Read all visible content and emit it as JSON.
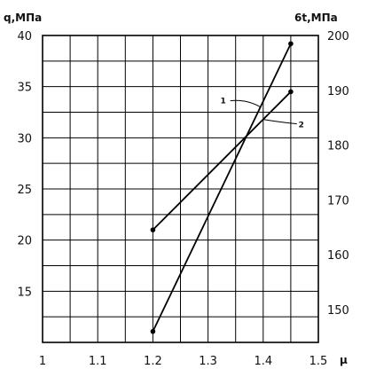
{
  "chart_data": {
    "type": "line",
    "left_axis_title": "q,МПа",
    "right_axis_title": "6t,МПа",
    "x_axis_title": "μ",
    "x_ticks": [
      "1",
      "1.1",
      "1.2",
      "1.3",
      "1.4",
      "1.5"
    ],
    "y_left_ticks": [
      "15",
      "20",
      "25",
      "30",
      "35",
      "40"
    ],
    "y_right_ticks": [
      "150",
      "160",
      "170",
      "180",
      "190",
      "200"
    ],
    "xlim": [
      1.0,
      1.5
    ],
    "ylim_left": [
      10,
      40
    ],
    "ylim_right": [
      144,
      200
    ],
    "grid": true,
    "series": [
      {
        "name": "1",
        "axis": "right",
        "x": [
          1.2,
          1.45
        ],
        "y": [
          146,
          198.5
        ]
      },
      {
        "name": "2",
        "axis": "left",
        "x": [
          1.2,
          1.45
        ],
        "y": [
          21,
          34.5
        ]
      }
    ]
  }
}
